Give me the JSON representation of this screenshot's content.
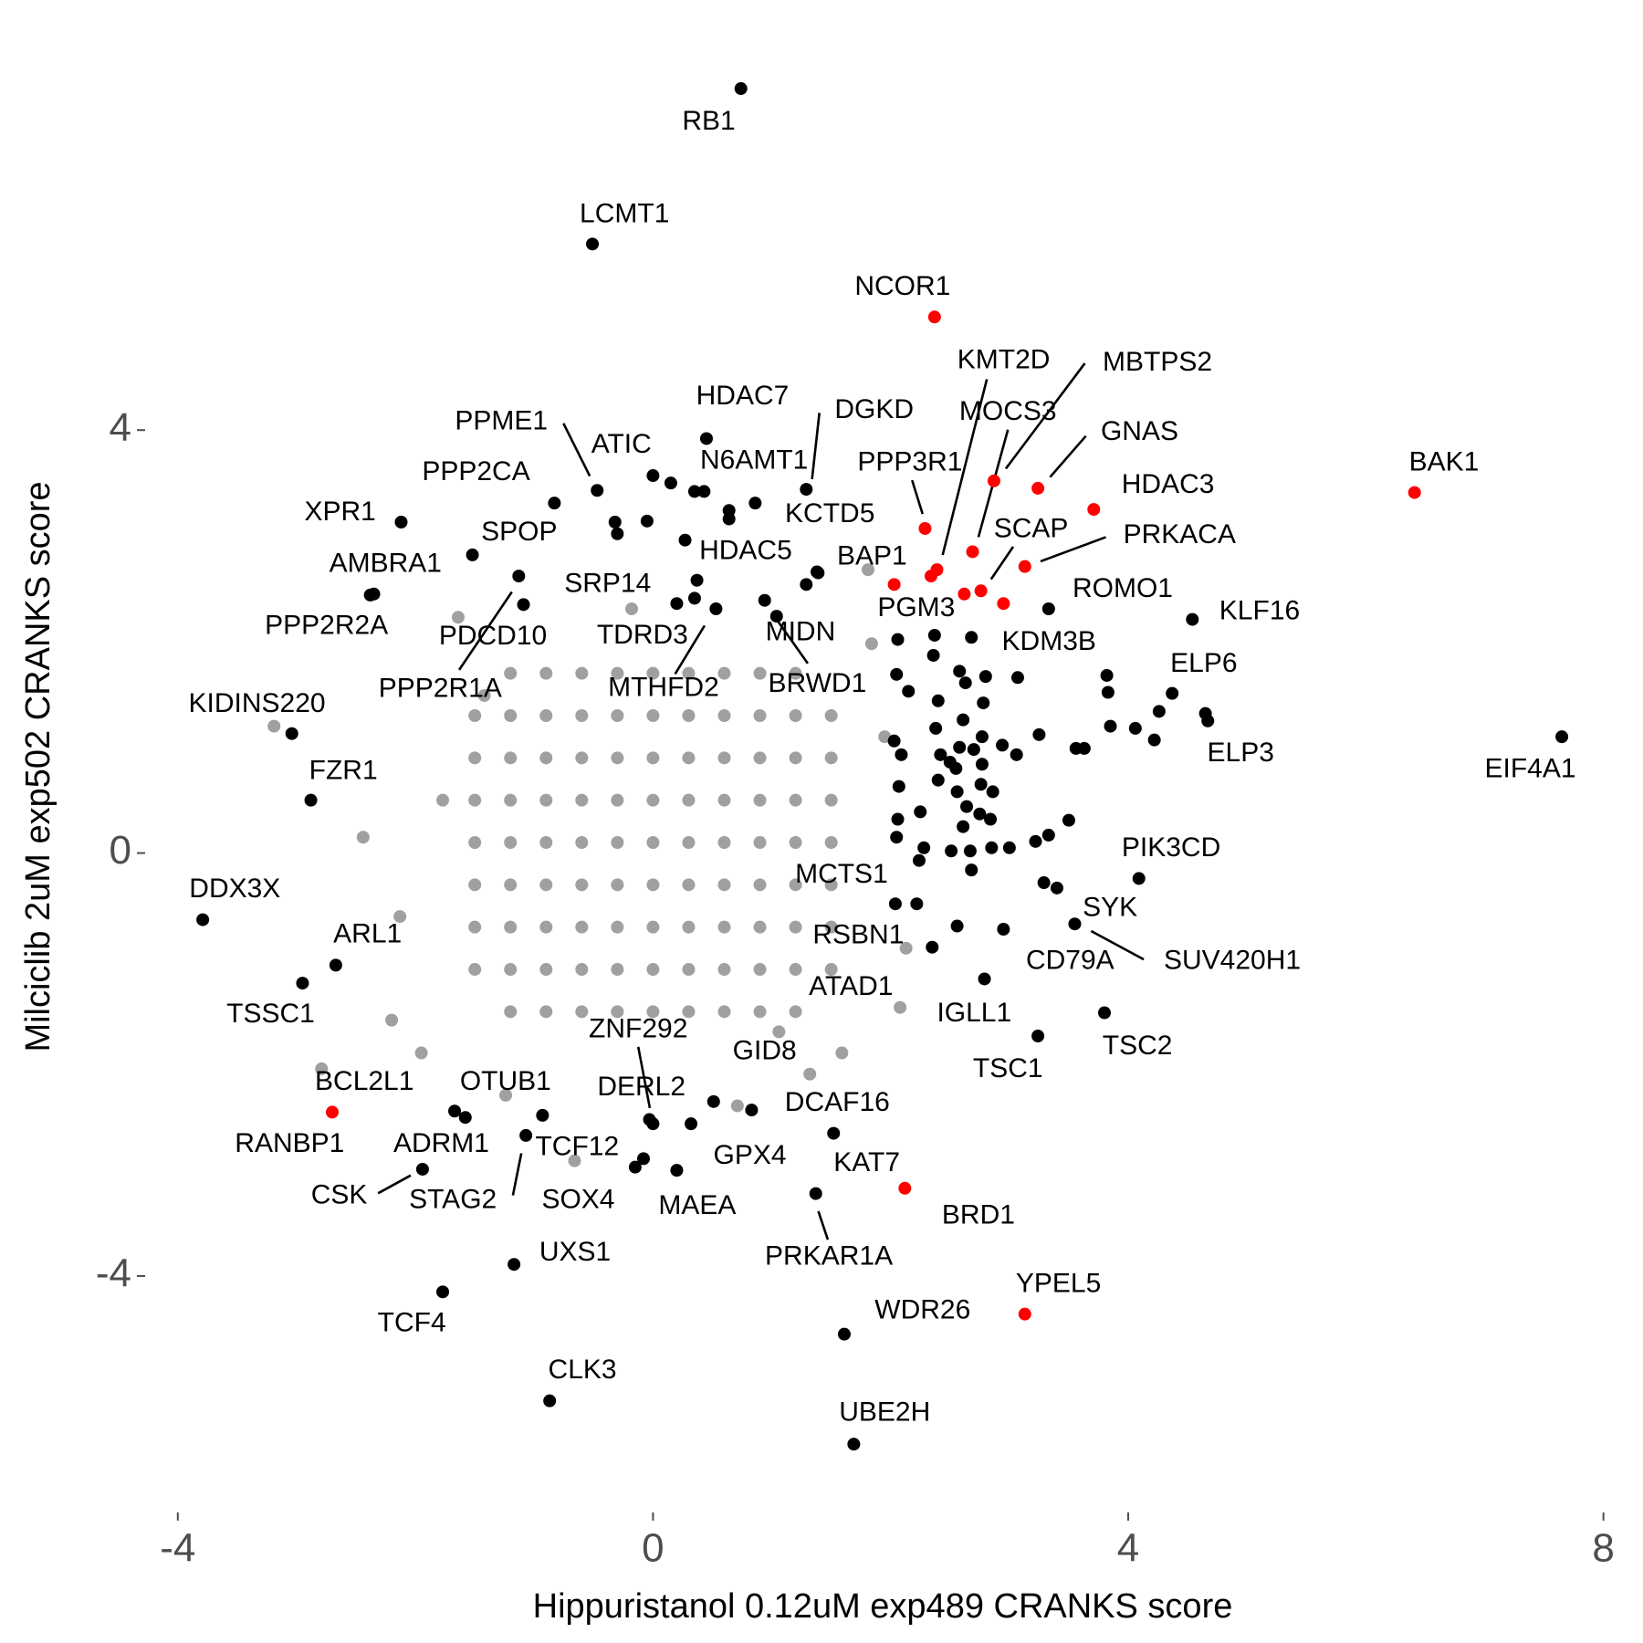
{
  "chart_data": {
    "type": "scatter",
    "x_label": "Hippuristanol 0.12uM exp489 CRANKS score",
    "y_label": "Milciclib 2uM exp502 CRANKS score",
    "xlim": [
      -4.4,
      8.1
    ],
    "ylim": [
      -6.1,
      7.5
    ],
    "xticks": [
      -4,
      0,
      4,
      8
    ],
    "yticks": [
      -4,
      0,
      4
    ],
    "grid": false,
    "series": [
      {
        "color": "#a0a0a0",
        "x": [
          -1.2,
          -0.9,
          -0.6,
          -0.3,
          0,
          0.3,
          0.6,
          0.9,
          1.2,
          -1.5,
          -1.2,
          -0.9,
          -0.6,
          -0.3,
          0,
          0.3,
          0.6,
          0.9,
          1.2,
          1.5,
          -1.5,
          -1.2,
          -0.9,
          -0.6,
          -0.3,
          0,
          0.3,
          0.6,
          0.9,
          1.2,
          1.5,
          -1.5,
          -1.2,
          -0.9,
          -0.6,
          -0.3,
          0,
          0.3,
          0.6,
          0.9,
          1.2,
          1.5,
          -1.5,
          -1.2,
          -0.9,
          -0.6,
          -0.3,
          0,
          0.3,
          0.6,
          0.9,
          1.2,
          1.5,
          -1.5,
          -1.2,
          -0.9,
          -0.6,
          -0.3,
          0,
          0.3,
          0.6,
          0.9,
          1.2,
          1.5,
          -1.5,
          -1.2,
          -0.9,
          -0.6,
          -0.3,
          0,
          0.3,
          0.6,
          0.9,
          1.2,
          1.5,
          -1.5,
          -1.2,
          -0.9,
          -0.6,
          -0.3,
          0,
          0.3,
          0.6,
          0.9,
          1.2,
          1.5,
          -1.2,
          -0.9,
          -0.6,
          -0.3,
          0,
          0.3,
          0.6,
          0.9,
          1.2,
          -3.19,
          -1.64,
          -2.79,
          -2.2,
          -2.44,
          -0.66,
          1.84,
          2.08,
          1.59,
          1.32,
          -0.18,
          1.81,
          -2.13,
          -1.95,
          -1.24,
          2.13,
          1.95,
          -1.42,
          -1.77,
          0.71,
          1.06
        ],
        "y": [
          -1.5,
          -1.5,
          -1.5,
          -1.5,
          -1.5,
          -1.5,
          -1.5,
          -1.5,
          -1.5,
          -1.1,
          -1.1,
          -1.1,
          -1.1,
          -1.1,
          -1.1,
          -1.1,
          -1.1,
          -1.1,
          -1.1,
          -1.1,
          -0.7,
          -0.7,
          -0.7,
          -0.7,
          -0.7,
          -0.7,
          -0.7,
          -0.7,
          -0.7,
          -0.7,
          -0.7,
          -0.3,
          -0.3,
          -0.3,
          -0.3,
          -0.3,
          -0.3,
          -0.3,
          -0.3,
          -0.3,
          -0.3,
          -0.3,
          0.1,
          0.1,
          0.1,
          0.1,
          0.1,
          0.1,
          0.1,
          0.1,
          0.1,
          0.1,
          0.1,
          0.5,
          0.5,
          0.5,
          0.5,
          0.5,
          0.5,
          0.5,
          0.5,
          0.5,
          0.5,
          0.5,
          0.9,
          0.9,
          0.9,
          0.9,
          0.9,
          0.9,
          0.9,
          0.9,
          0.9,
          0.9,
          0.9,
          1.3,
          1.3,
          1.3,
          1.3,
          1.3,
          1.3,
          1.3,
          1.3,
          1.3,
          1.3,
          1.3,
          1.7,
          1.7,
          1.7,
          1.7,
          1.7,
          1.7,
          1.7,
          1.7,
          1.7,
          1.2,
          2.23,
          -2.04,
          -1.58,
          0.15,
          -2.91,
          1.98,
          -1.46,
          -1.89,
          -2.09,
          2.31,
          2.68,
          -0.6,
          -1.89,
          -2.29,
          -0.9,
          1.1,
          1.49,
          0.5,
          -2.39,
          -1.69
        ]
      },
      {
        "color": "#000000",
        "x": [
          2.06,
          2.05,
          2.36,
          2.15,
          2.58,
          2.4,
          2.63,
          2.8,
          3.07,
          2.78,
          2.61,
          2.03,
          2.38,
          2.77,
          2.58,
          2.7,
          2.94,
          3.06,
          2.09,
          2.42,
          2.5,
          2.4,
          2.76,
          2.56,
          2.07,
          2.86,
          2.64,
          2.75,
          2.84,
          2.06,
          2.25,
          2.61,
          2.28,
          2.51,
          2.67,
          2.85,
          3.22,
          3.5,
          3.33,
          2.05,
          2.24,
          2.68,
          3.0,
          2.22,
          2.56,
          3.82,
          3.83,
          4.26,
          3.85,
          4.22,
          4.06,
          3.56,
          3.63,
          4.65,
          3.25,
          2.77,
          2.55,
          0.35,
          0.15,
          0.64,
          0.64,
          -0.32,
          -0.3,
          -0.05,
          0.2,
          1.38,
          1.29
        ],
        "y": [
          2.02,
          1.69,
          1.87,
          1.53,
          1.72,
          1.44,
          1.61,
          1.67,
          1.66,
          1.42,
          1.26,
          1.06,
          1.18,
          1.1,
          1.0,
          0.98,
          1.02,
          0.93,
          0.93,
          0.93,
          0.86,
          0.69,
          0.65,
          0.58,
          0.63,
          0.58,
          0.44,
          0.37,
          0.32,
          0.32,
          0.39,
          0.25,
          0.05,
          0.02,
          0.02,
          0.05,
          0.11,
          0.31,
          0.17,
          0.15,
          -0.07,
          -0.16,
          0.05,
          -0.48,
          -0.69,
          1.68,
          1.52,
          1.34,
          1.2,
          1.07,
          1.18,
          0.99,
          0.99,
          1.32,
          1.12,
          0.84,
          0.8,
          3.42,
          3.5,
          3.24,
          3.16,
          3.13,
          3.02,
          3.14,
          2.36,
          2.66,
          2.54
        ]
      },
      {
        "color": "#000000",
        "labels": [
          "RB1",
          "LCMT1",
          "HDAC7",
          "DGKD",
          "PPME1",
          "ATIC",
          "N6AMT1",
          "PPP2CA",
          "XPR1",
          "KCTD5",
          "SPOP",
          "AMBRA1",
          "PPP2R2A",
          "HDAC5",
          "BAP1",
          "SRP14",
          "PPP2R1A",
          "PDCD10",
          "TDRD3",
          "MTHFD2",
          "MIDN",
          "BRWD1",
          "PGM3",
          "KDM3B",
          "ROMO1",
          "KLF16",
          "ELP6",
          "ELP3",
          "EIF4A1",
          "KIDINS220",
          "FZR1",
          "PIK3CD",
          "MCTS1",
          "DDX3X",
          "SYK",
          "SUV420H1",
          "CD79A",
          "ARL1",
          "RSBN1",
          "TSSC1",
          "ATAD1",
          "IGLL1",
          "TSC1",
          "TSC2",
          "ZNF292",
          "DERL2",
          "OTUB1",
          "RANBP1",
          "ADRM1",
          "GID8",
          "DCAF16",
          "GPX4",
          "TCF12",
          "STAG2",
          "SOX4",
          "MAEA",
          "KAT7",
          "PRKAR1A",
          "CSK",
          "UXS1",
          "TCF4",
          "CLK3",
          "WDR26",
          "UBE2H"
        ],
        "x": [
          0.74,
          -0.51,
          0.45,
          1.29,
          -0.47,
          0,
          0.43,
          -0.83,
          -2.12,
          0.86,
          -1.52,
          -2.35,
          -2.38,
          0.27,
          1.39,
          0.37,
          -1.13,
          -1.09,
          0.35,
          0.53,
          0.94,
          1.04,
          2.37,
          2.68,
          3.33,
          4.54,
          4.37,
          4.67,
          7.65,
          -3.04,
          -2.88,
          4.09,
          2.04,
          -3.79,
          3.4,
          3.55,
          3.29,
          -2.67,
          2.35,
          -2.95,
          2.79,
          2.95,
          3.24,
          3.8,
          -0.03,
          0,
          -0.93,
          -1.67,
          -1.58,
          0.51,
          0.83,
          0.32,
          -0.08,
          -1.07,
          -0.15,
          0.2,
          1.52,
          1.37,
          -1.94,
          -1.17,
          -1.77,
          -0.87,
          1.61,
          1.69
        ],
        "y": [
          7.23,
          5.76,
          3.92,
          3.44,
          3.43,
          3.57,
          3.42,
          3.31,
          3.13,
          3.31,
          2.82,
          2.45,
          2.44,
          2.96,
          2.65,
          2.58,
          2.62,
          2.35,
          2.41,
          2.31,
          2.39,
          2.24,
          2.06,
          2.04,
          2.31,
          2.21,
          1.51,
          1.25,
          1.1,
          1.13,
          0.5,
          -0.24,
          -0.48,
          -0.63,
          -0.33,
          -0.67,
          -0.28,
          -1.06,
          -0.89,
          -1.23,
          -1.19,
          -0.72,
          -1.73,
          -1.51,
          -2.52,
          -2.56,
          -2.48,
          -2.44,
          -2.5,
          -2.35,
          -2.43,
          -2.56,
          -2.89,
          -2.67,
          -2.97,
          -3.0,
          -2.65,
          -3.22,
          -2.99,
          -3.89,
          -4.15,
          -5.18,
          -4.55,
          -5.59
        ]
      },
      {
        "color": "#ff0000",
        "labels": [
          "NCOR1",
          "PPP3R1",
          "KMT2D",
          "MOCS3",
          "MBTPS2",
          "GNAS",
          "HDAC3",
          "PRKACA",
          "SCAP",
          "BAK1",
          "BCL2L1",
          "YPEL5",
          "BRD1"
        ],
        "x": [
          2.37,
          2.29,
          2.39,
          2.69,
          2.87,
          3.24,
          3.71,
          3.13,
          2.76,
          6.41,
          -2.7,
          3.13,
          2.12
        ],
        "y": [
          5.07,
          3.07,
          2.68,
          2.85,
          3.52,
          3.45,
          3.25,
          2.71,
          2.48,
          3.41,
          -2.45,
          -4.36,
          -3.17
        ]
      },
      {
        "color": "#ff0000",
        "x": [
          2.03,
          2.34,
          2.62,
          2.95
        ],
        "y": [
          2.54,
          2.62,
          2.45,
          2.36
        ]
      }
    ]
  }
}
